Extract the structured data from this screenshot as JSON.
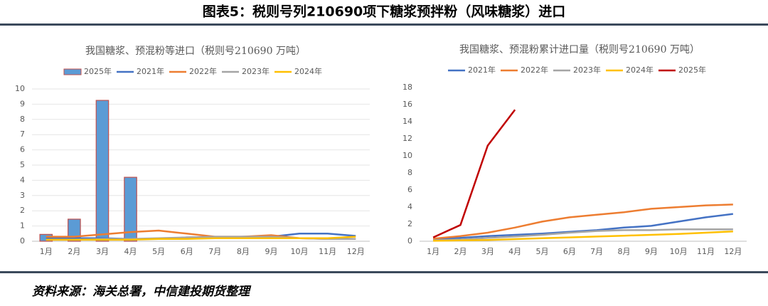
{
  "title": "图表5：税则号列210690项下糖浆预拌粉（风味糖浆）进口",
  "source": "资料来源：海关总署，中信建投期货整理",
  "chart_data": [
    {
      "type": "bar-line",
      "title": "我国糖浆、预混粉等进口（税则号210690 万吨）",
      "categories": [
        "1月",
        "2月",
        "3月",
        "4月",
        "5月",
        "6月",
        "7月",
        "8月",
        "9月",
        "10月",
        "11月",
        "12月"
      ],
      "ylim": [
        0,
        10
      ],
      "yticks": [
        0,
        1,
        2,
        3,
        4,
        5,
        6,
        7,
        8,
        9,
        10
      ],
      "grid": true,
      "series": [
        {
          "name": "2025年",
          "type": "bar",
          "color": "#5b9bd5",
          "values": [
            0.45,
            1.45,
            9.25,
            4.2,
            null,
            null,
            null,
            null,
            null,
            null,
            null,
            null
          ]
        },
        {
          "name": "2021年",
          "type": "line",
          "color": "#4472c4",
          "values": [
            0.2,
            0.2,
            0.2,
            0.15,
            0.15,
            0.25,
            0.25,
            0.3,
            0.3,
            0.5,
            0.5,
            0.35
          ]
        },
        {
          "name": "2022年",
          "type": "line",
          "color": "#ed7d31",
          "values": [
            0.3,
            0.3,
            0.45,
            0.6,
            0.7,
            0.5,
            0.3,
            0.3,
            0.4,
            0.2,
            0.15,
            0.15
          ]
        },
        {
          "name": "2023年",
          "type": "line",
          "color": "#a5a5a5",
          "values": [
            0.1,
            0.1,
            0.15,
            0.15,
            0.2,
            0.25,
            0.3,
            0.3,
            0.3,
            0.2,
            0.15,
            0.15
          ]
        },
        {
          "name": "2024年",
          "type": "line",
          "color": "#ffc000",
          "values": [
            0.1,
            0.1,
            0.1,
            0.1,
            0.15,
            0.15,
            0.2,
            0.2,
            0.2,
            0.2,
            0.2,
            0.3
          ]
        }
      ]
    },
    {
      "type": "line",
      "title": "我国糖浆、预混粉累计进口量（税则号210690 万吨）",
      "categories": [
        "1月",
        "2月",
        "3月",
        "4月",
        "5月",
        "6月",
        "7月",
        "8月",
        "9月",
        "10月",
        "11月",
        "12月"
      ],
      "ylim": [
        0,
        18
      ],
      "yticks": [
        0,
        2,
        4,
        6,
        8,
        10,
        12,
        14,
        16,
        18
      ],
      "grid": false,
      "series": [
        {
          "name": "2021年",
          "color": "#4472c4",
          "values": [
            0.2,
            0.4,
            0.6,
            0.75,
            0.9,
            1.1,
            1.3,
            1.6,
            1.8,
            2.3,
            2.8,
            3.2
          ]
        },
        {
          "name": "2022年",
          "color": "#ed7d31",
          "values": [
            0.3,
            0.6,
            1.0,
            1.6,
            2.3,
            2.8,
            3.1,
            3.4,
            3.8,
            4.0,
            4.2,
            4.3
          ]
        },
        {
          "name": "2023年",
          "color": "#a5a5a5",
          "values": [
            0.1,
            0.2,
            0.4,
            0.55,
            0.75,
            1.0,
            1.2,
            1.3,
            1.3,
            1.4,
            1.4,
            1.4
          ]
        },
        {
          "name": "2024年",
          "color": "#ffc000",
          "values": [
            0.05,
            0.1,
            0.15,
            0.25,
            0.35,
            0.45,
            0.55,
            0.65,
            0.75,
            0.85,
            1.0,
            1.15
          ]
        },
        {
          "name": "2025年",
          "color": "#c00000",
          "values": [
            0.45,
            1.9,
            11.2,
            15.4,
            null,
            null,
            null,
            null,
            null,
            null,
            null,
            null
          ]
        }
      ]
    }
  ]
}
